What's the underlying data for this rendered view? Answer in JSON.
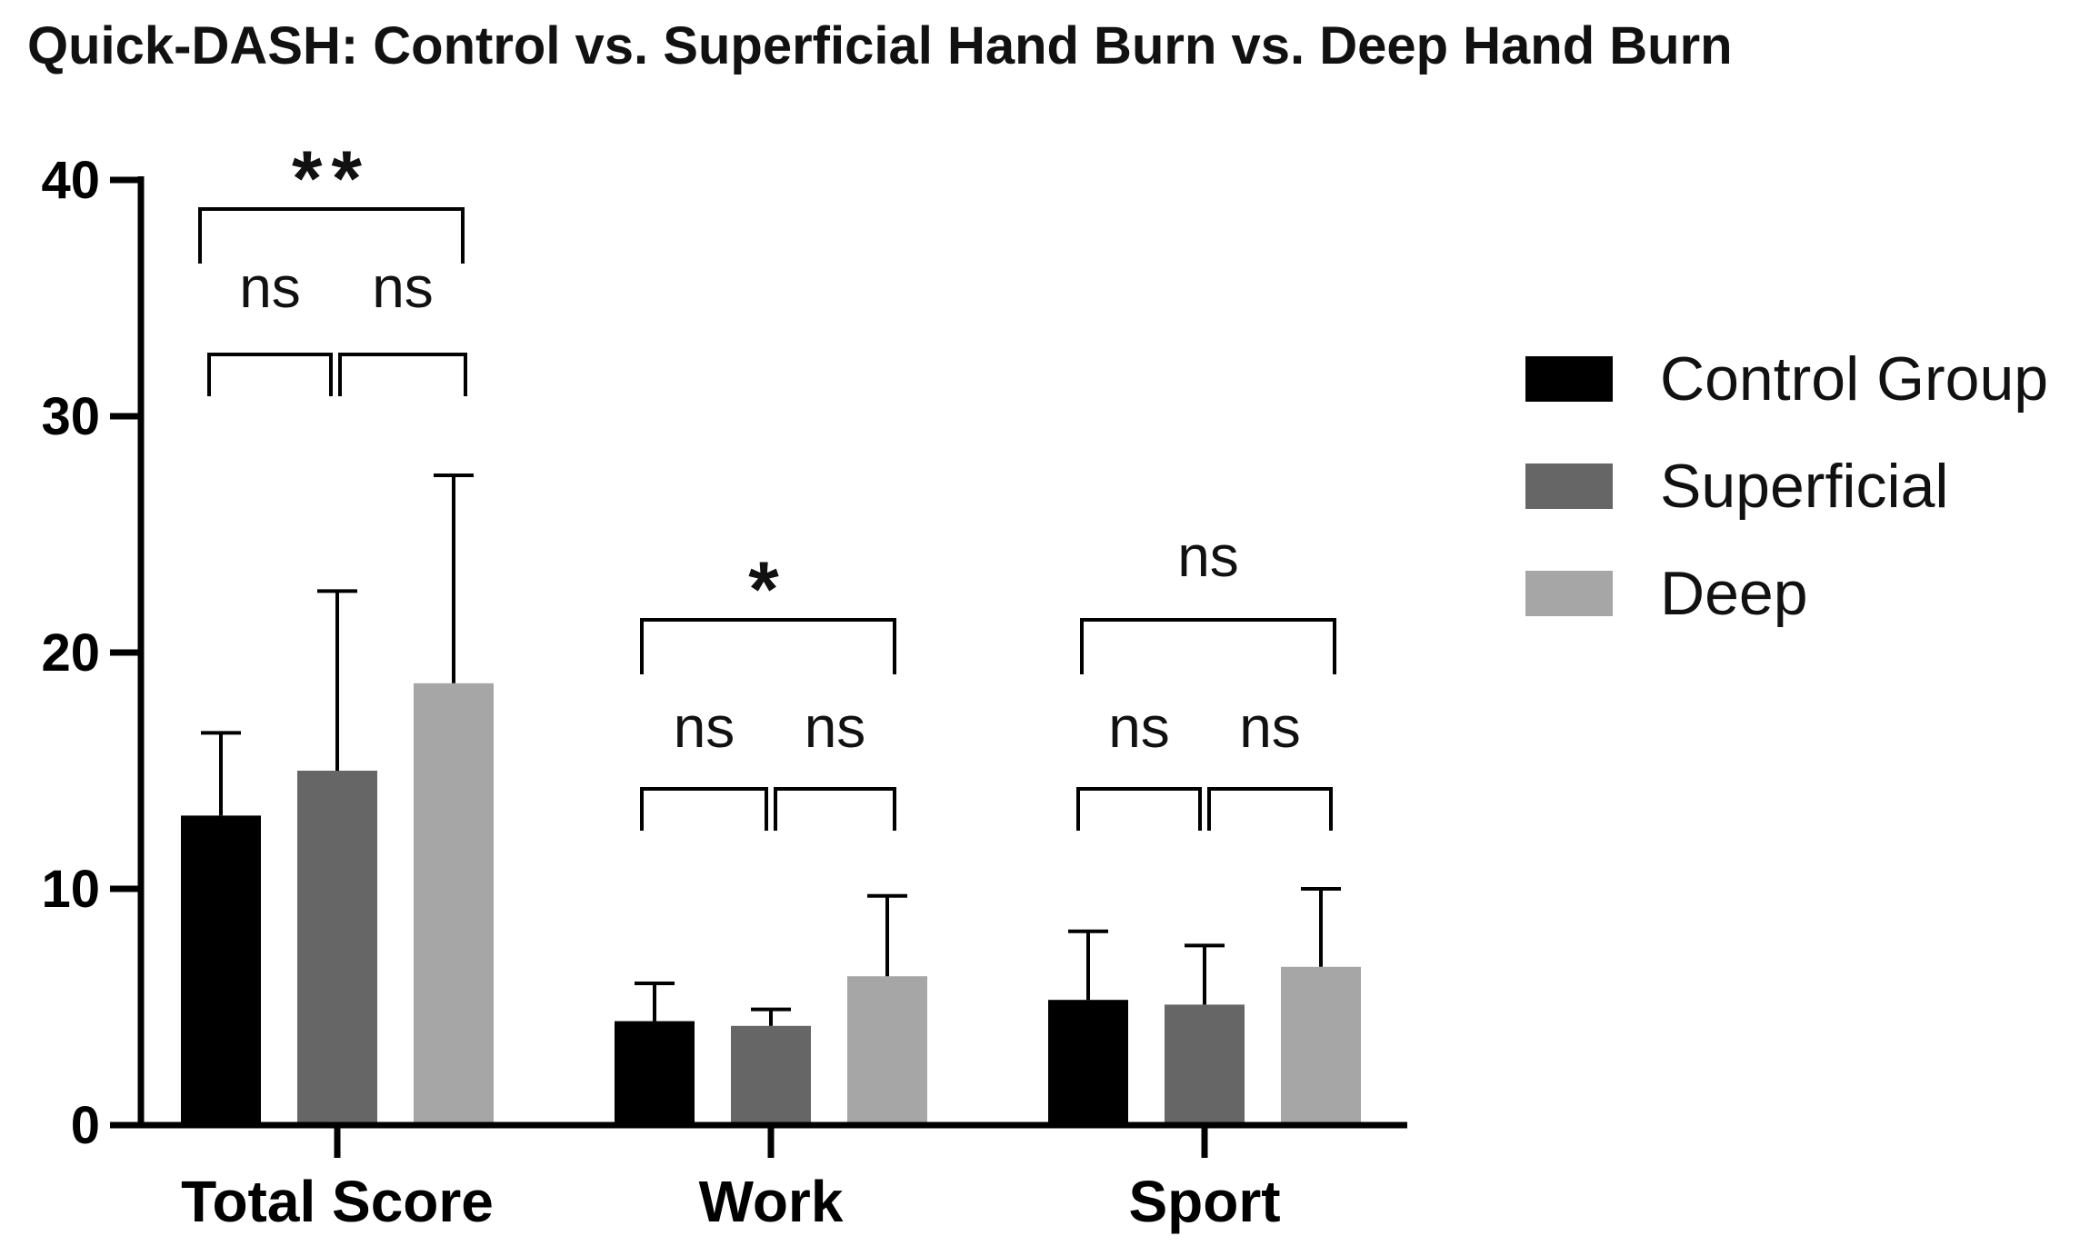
{
  "chart_data": {
    "type": "bar",
    "title": "Quick-DASH: Control vs. Superficial Hand Burn vs. Deep Hand Burn",
    "xlabel": "",
    "ylabel": "",
    "ylim": [
      0,
      40
    ],
    "yticks": [
      0,
      10,
      20,
      30,
      40
    ],
    "ytick_labels": [
      "0",
      "10",
      "20",
      "30",
      "40"
    ],
    "categories": [
      "Total Score",
      "Work",
      "Sport"
    ],
    "series": [
      {
        "name": "Control Group",
        "color": "#000000",
        "values": [
          13.1,
          4.4,
          5.3
        ],
        "errors": [
          3.5,
          1.6,
          2.9
        ]
      },
      {
        "name": "Superficial",
        "color": "#666666",
        "values": [
          15.0,
          4.2,
          5.1
        ],
        "errors": [
          7.6,
          0.7,
          2.5
        ]
      },
      {
        "name": "Deep",
        "color": "#a6a6a7",
        "values": [
          18.7,
          6.3,
          6.7
        ],
        "errors": [
          8.8,
          3.4,
          3.3
        ]
      }
    ],
    "legend": {
      "position": "right"
    },
    "grid": false,
    "significance": [
      {
        "category": "Total Score",
        "overall": "**",
        "pairwise": [
          "ns",
          "ns"
        ]
      },
      {
        "category": "Work",
        "overall": "*",
        "pairwise": [
          "ns",
          "ns"
        ]
      },
      {
        "category": "Sport",
        "overall": "ns",
        "pairwise": [
          "ns",
          "ns"
        ]
      }
    ]
  }
}
